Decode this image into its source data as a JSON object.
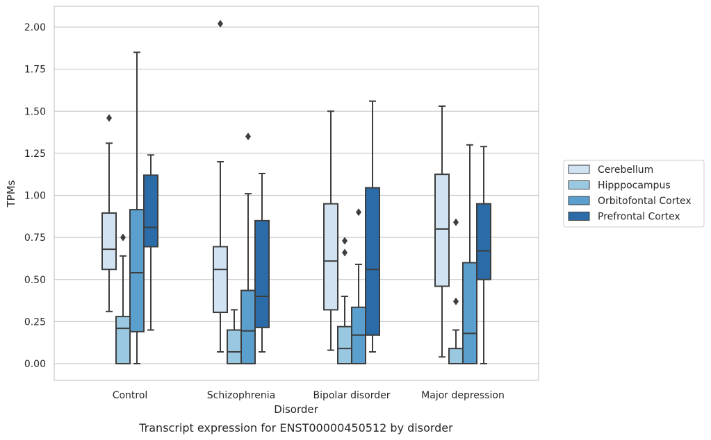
{
  "chart_data": {
    "type": "box",
    "title": "Transcript expression for ENST00000450512 by disorder",
    "xlabel": "Disorder",
    "ylabel": "TPMs",
    "ylim": [
      -0.1,
      2.12
    ],
    "yticks": [
      0.0,
      0.25,
      0.5,
      0.75,
      1.0,
      1.25,
      1.5,
      1.75,
      2.0
    ],
    "ytick_labels": [
      "0.00",
      "0.25",
      "0.50",
      "0.75",
      "1.00",
      "1.25",
      "1.50",
      "1.75",
      "2.00"
    ],
    "categories": [
      "Control",
      "Schizophrenia",
      "Bipolar disorder",
      "Major depression"
    ],
    "grid": "horizontal",
    "legend_position": "right, outside plot",
    "series": [
      {
        "name": "Cerebellum",
        "color": "#d1e2f2",
        "boxes": [
          {
            "whislo": 0.31,
            "q1": 0.56,
            "med": 0.68,
            "q3": 0.895,
            "whishi": 1.31,
            "fliers": [
              1.46
            ]
          },
          {
            "whislo": 0.07,
            "q1": 0.305,
            "med": 0.56,
            "q3": 0.695,
            "whishi": 1.2,
            "fliers": [
              2.02
            ]
          },
          {
            "whislo": 0.08,
            "q1": 0.32,
            "med": 0.61,
            "q3": 0.95,
            "whishi": 1.5,
            "fliers": []
          },
          {
            "whislo": 0.04,
            "q1": 0.46,
            "med": 0.8,
            "q3": 1.125,
            "whishi": 1.53,
            "fliers": []
          }
        ]
      },
      {
        "name": "Hipppocampus",
        "color": "#9ac8e0",
        "boxes": [
          {
            "whislo": 0.0,
            "q1": 0.0,
            "med": 0.21,
            "q3": 0.28,
            "whishi": 0.64,
            "fliers": [
              0.75
            ]
          },
          {
            "whislo": 0.0,
            "q1": 0.0,
            "med": 0.07,
            "q3": 0.2,
            "whishi": 0.32,
            "fliers": []
          },
          {
            "whislo": 0.0,
            "q1": 0.0,
            "med": 0.09,
            "q3": 0.22,
            "whishi": 0.4,
            "fliers": [
              0.66,
              0.73
            ]
          },
          {
            "whislo": 0.0,
            "q1": 0.0,
            "med": 0.0,
            "q3": 0.09,
            "whishi": 0.2,
            "fliers": [
              0.37,
              0.84
            ]
          }
        ]
      },
      {
        "name": "Orbitofontal Cortex",
        "color": "#5a9fcd",
        "boxes": [
          {
            "whislo": 0.0,
            "q1": 0.19,
            "med": 0.54,
            "q3": 0.915,
            "whishi": 1.85,
            "fliers": []
          },
          {
            "whislo": 0.0,
            "q1": 0.0,
            "med": 0.195,
            "q3": 0.435,
            "whishi": 1.01,
            "fliers": [
              1.35
            ]
          },
          {
            "whislo": 0.0,
            "q1": 0.0,
            "med": 0.17,
            "q3": 0.335,
            "whishi": 0.59,
            "fliers": [
              0.9
            ]
          },
          {
            "whislo": 0.0,
            "q1": 0.0,
            "med": 0.18,
            "q3": 0.6,
            "whishi": 1.3,
            "fliers": []
          }
        ]
      },
      {
        "name": "Prefrontal Cortex",
        "color": "#2a6ba8",
        "boxes": [
          {
            "whislo": 0.2,
            "q1": 0.695,
            "med": 0.81,
            "q3": 1.12,
            "whishi": 1.24,
            "fliers": []
          },
          {
            "whislo": 0.07,
            "q1": 0.215,
            "med": 0.4,
            "q3": 0.85,
            "whishi": 1.13,
            "fliers": []
          },
          {
            "whislo": 0.07,
            "q1": 0.17,
            "med": 0.56,
            "q3": 1.045,
            "whishi": 1.56,
            "fliers": []
          },
          {
            "whislo": 0.0,
            "q1": 0.5,
            "med": 0.67,
            "q3": 0.95,
            "whishi": 1.29,
            "fliers": []
          }
        ]
      }
    ]
  }
}
